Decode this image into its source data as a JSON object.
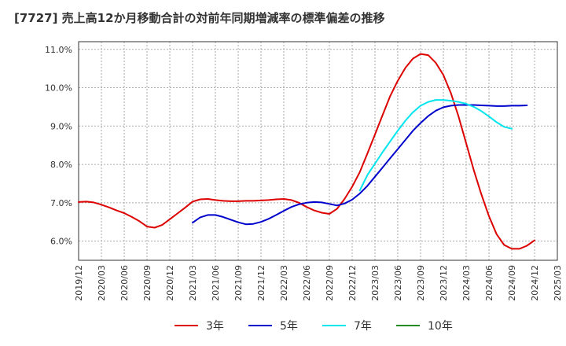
{
  "chart_data": {
    "type": "line",
    "title": "[7727]  売上高12か月移動合計の対前年同期増減率の標準偏差の推移",
    "xlabel": "",
    "ylabel": "",
    "ylim": [
      5.5,
      11.2
    ],
    "x_ticks": [
      "2019/12",
      "2020/03",
      "2020/06",
      "2020/09",
      "2020/12",
      "2021/03",
      "2021/06",
      "2021/09",
      "2021/12",
      "2022/03",
      "2022/06",
      "2022/09",
      "2022/12",
      "2023/03",
      "2023/06",
      "2023/09",
      "2023/12",
      "2024/03",
      "2024/06",
      "2024/09",
      "2024/12",
      "2025/03"
    ],
    "y_ticks": [
      6.0,
      7.0,
      8.0,
      9.0,
      10.0,
      11.0
    ],
    "y_tick_labels": [
      "6.0%",
      "7.0%",
      "8.0%",
      "9.0%",
      "10.0%",
      "11.0%"
    ],
    "grid": true,
    "legend_position": "bottom",
    "series": [
      {
        "name": "3年",
        "color": "#dd0000",
        "start": "2019/12",
        "values": [
          7.02,
          7.03,
          7.01,
          6.95,
          6.88,
          6.8,
          6.73,
          6.63,
          6.52,
          6.38,
          6.35,
          6.42,
          6.57,
          6.72,
          6.87,
          7.03,
          7.09,
          7.1,
          7.07,
          7.05,
          7.04,
          7.04,
          7.05,
          7.05,
          7.06,
          7.07,
          7.09,
          7.1,
          7.07,
          7.0,
          6.89,
          6.8,
          6.74,
          6.71,
          6.84,
          7.1,
          7.42,
          7.8,
          8.28,
          8.78,
          9.29,
          9.78,
          10.18,
          10.52,
          10.76,
          10.88,
          10.85,
          10.65,
          10.33,
          9.85,
          9.25,
          8.55,
          7.85,
          7.22,
          6.65,
          6.18,
          5.9,
          5.8,
          5.8,
          5.88,
          6.02
        ]
      },
      {
        "name": "5年",
        "color": "#0000cc",
        "start": "2021/03",
        "values": [
          6.48,
          6.62,
          6.68,
          6.68,
          6.63,
          6.56,
          6.49,
          6.44,
          6.45,
          6.5,
          6.58,
          6.68,
          6.79,
          6.89,
          6.96,
          7.0,
          7.02,
          7.01,
          6.97,
          6.93,
          6.98,
          7.08,
          7.24,
          7.44,
          7.68,
          7.92,
          8.16,
          8.4,
          8.64,
          8.88,
          9.08,
          9.26,
          9.4,
          9.49,
          9.53,
          9.55,
          9.55,
          9.55,
          9.54,
          9.53,
          9.52,
          9.52,
          9.53,
          9.53,
          9.54
        ]
      },
      {
        "name": "7年",
        "color": "#00e5ee",
        "start": "2023/01",
        "values": [
          7.32,
          7.72,
          8.02,
          8.32,
          8.6,
          8.88,
          9.14,
          9.36,
          9.53,
          9.63,
          9.68,
          9.68,
          9.66,
          9.63,
          9.58,
          9.5,
          9.39,
          9.25,
          9.1,
          8.98,
          8.93
        ]
      },
      {
        "name": "10年",
        "color": "#228b22",
        "start": "",
        "values": []
      }
    ]
  }
}
